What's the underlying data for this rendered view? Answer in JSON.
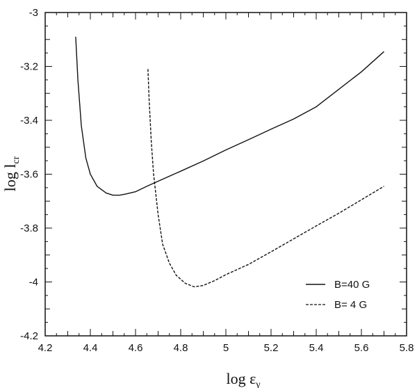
{
  "chart_data": {
    "type": "line",
    "title": "",
    "xlabel": {
      "base": "log ε",
      "sub": "γ"
    },
    "ylabel": {
      "base": "log l",
      "sub": "cr"
    },
    "xlim": [
      4.2,
      5.8
    ],
    "ylim": [
      -4.2,
      -3.0
    ],
    "xticks": [
      "4.2",
      "4.4",
      "4.6",
      "4.8",
      "5",
      "5.2",
      "5.4",
      "5.6",
      "5.8"
    ],
    "yticks": [
      "-3",
      "-3.2",
      "-3.4",
      "-3.6",
      "-3.8",
      "-4",
      "-4.2"
    ],
    "grid": false,
    "legend_position": "bottom-right",
    "series": [
      {
        "name": "B=40 G",
        "style": "solid",
        "x": [
          4.335,
          4.345,
          4.36,
          4.38,
          4.4,
          4.43,
          4.47,
          4.5,
          4.53,
          4.56,
          4.6,
          4.65,
          4.7,
          4.8,
          4.9,
          5.0,
          5.1,
          5.2,
          5.3,
          5.4,
          5.5,
          5.6,
          5.7
        ],
        "y": [
          -3.09,
          -3.25,
          -3.42,
          -3.54,
          -3.6,
          -3.645,
          -3.67,
          -3.678,
          -3.678,
          -3.673,
          -3.665,
          -3.645,
          -3.626,
          -3.589,
          -3.551,
          -3.51,
          -3.472,
          -3.433,
          -3.395,
          -3.35,
          -3.285,
          -3.22,
          -3.145
        ]
      },
      {
        "name": "B= 4 G",
        "style": "dashed",
        "x": [
          4.655,
          4.66,
          4.67,
          4.68,
          4.7,
          4.72,
          4.75,
          4.78,
          4.82,
          4.86,
          4.9,
          4.95,
          5.0,
          5.1,
          5.2,
          5.3,
          5.4,
          5.5,
          5.6,
          5.7
        ],
        "y": [
          -3.21,
          -3.32,
          -3.48,
          -3.6,
          -3.75,
          -3.86,
          -3.93,
          -3.975,
          -4.005,
          -4.018,
          -4.013,
          -3.995,
          -3.973,
          -3.935,
          -3.888,
          -3.84,
          -3.792,
          -3.745,
          -3.695,
          -3.645
        ]
      }
    ]
  }
}
